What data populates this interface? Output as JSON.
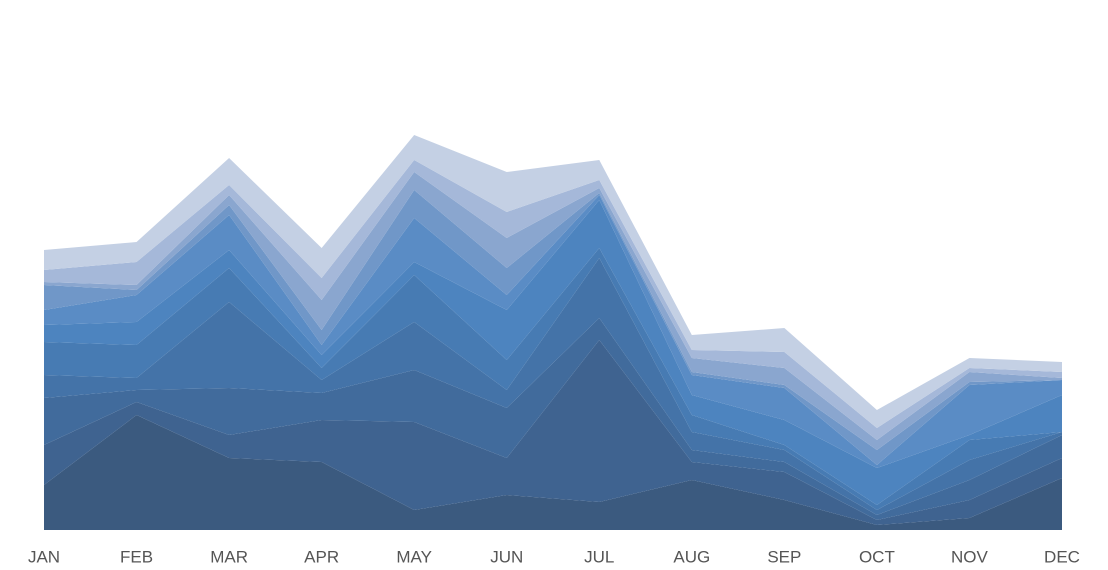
{
  "chart_data": {
    "type": "stacked_area",
    "categories": [
      "JAN",
      "FEB",
      "MAR",
      "APR",
      "MAY",
      "JUN",
      "JUL",
      "AUG",
      "SEP",
      "OCT",
      "NOV",
      "DEC"
    ],
    "ylim": [
      0,
      420
    ],
    "series": [
      {
        "color": "#3b5a7f",
        "values": [
          45,
          115,
          72,
          68,
          20,
          35,
          28,
          50,
          30,
          5,
          12,
          52
        ]
      },
      {
        "color": "#3f6390",
        "values": [
          40,
          13,
          23,
          42,
          88,
          37,
          162,
          18,
          28,
          5,
          18,
          20
        ]
      },
      {
        "color": "#416b9c",
        "values": [
          47,
          12,
          47,
          27,
          52,
          50,
          22,
          12,
          10,
          5,
          20,
          23
        ]
      },
      {
        "color": "#4473a8",
        "values": [
          23,
          12,
          86,
          13,
          48,
          18,
          60,
          18,
          12,
          5,
          20,
          3
        ]
      },
      {
        "color": "#477bb3",
        "values": [
          33,
          33,
          34,
          12,
          47,
          30,
          10,
          17,
          5,
          5,
          20,
          0
        ]
      },
      {
        "color": "#4d84bf",
        "values": [
          17,
          23,
          18,
          13,
          13,
          50,
          48,
          20,
          25,
          37,
          5,
          37
        ]
      },
      {
        "color": "#5a8cc5",
        "values": [
          15,
          27,
          35,
          10,
          44,
          15,
          5,
          20,
          32,
          3,
          50,
          15
        ]
      },
      {
        "color": "#7097c8",
        "values": [
          25,
          5,
          10,
          15,
          28,
          27,
          2,
          3,
          3,
          15,
          3,
          0
        ]
      },
      {
        "color": "#8aa6cf",
        "values": [
          3,
          5,
          10,
          30,
          18,
          30,
          5,
          14,
          17,
          10,
          10,
          2
        ]
      },
      {
        "color": "#a5b8d9",
        "values": [
          12,
          23,
          10,
          22,
          12,
          26,
          8,
          8,
          16,
          12,
          4,
          6
        ]
      },
      {
        "color": "#c4d0e4",
        "values": [
          20,
          20,
          27,
          30,
          25,
          40,
          20,
          15,
          24,
          18,
          10,
          10
        ]
      }
    ]
  }
}
